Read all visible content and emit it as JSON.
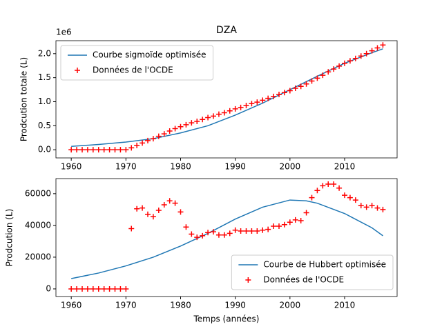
{
  "chart_data": [
    {
      "type": "line",
      "title": "DZA",
      "offset_label": "1e6",
      "y_label": "Prodcution totale (L)",
      "xlim": [
        1957.2,
        2019.6
      ],
      "xticks": [
        1960,
        1970,
        1980,
        1990,
        2000,
        2010
      ],
      "ylim": [
        -0.17,
        2.27
      ],
      "yticks": [
        {
          "value": 0,
          "label": "0.0"
        },
        {
          "value": 0.5,
          "label": "0.5"
        },
        {
          "value": 1,
          "label": "1.0"
        },
        {
          "value": 1.5,
          "label": "1.5"
        },
        {
          "value": 2,
          "label": "2.0"
        }
      ],
      "legend": "upper left",
      "series": [
        {
          "name": "Courbe sigmoïde optimisée",
          "type": "line",
          "color": "#1f77b4",
          "x": [
            1960,
            1965,
            1970,
            1975,
            1980,
            1985,
            1990,
            1995,
            2000,
            2005,
            2010,
            2015,
            2017
          ],
          "values": [
            0.07,
            0.11,
            0.16,
            0.23,
            0.35,
            0.5,
            0.72,
            0.97,
            1.25,
            1.53,
            1.8,
            2.02,
            2.1
          ]
        },
        {
          "name": "Données de l'OCDE",
          "type": "scatter",
          "color": "#ff0000",
          "x": [
            1960,
            1961,
            1962,
            1963,
            1964,
            1965,
            1966,
            1967,
            1968,
            1969,
            1970,
            1971,
            1972,
            1973,
            1974,
            1975,
            1976,
            1977,
            1978,
            1979,
            1980,
            1981,
            1982,
            1983,
            1984,
            1985,
            1986,
            1987,
            1988,
            1989,
            1990,
            1991,
            1992,
            1993,
            1994,
            1995,
            1996,
            1997,
            1998,
            1999,
            2000,
            2001,
            2002,
            2003,
            2004,
            2005,
            2006,
            2007,
            2008,
            2009,
            2010,
            2011,
            2012,
            2013,
            2014,
            2015,
            2016,
            2017
          ],
          "values": [
            0,
            0,
            0,
            0,
            0,
            0,
            0,
            0,
            0,
            0,
            0,
            0.04,
            0.09,
            0.14,
            0.19,
            0.23,
            0.28,
            0.33,
            0.39,
            0.44,
            0.48,
            0.52,
            0.56,
            0.59,
            0.63,
            0.67,
            0.7,
            0.74,
            0.77,
            0.81,
            0.85,
            0.88,
            0.92,
            0.96,
            0.99,
            1.03,
            1.07,
            1.11,
            1.15,
            1.19,
            1.23,
            1.28,
            1.32,
            1.37,
            1.43,
            1.49,
            1.55,
            1.62,
            1.68,
            1.74,
            1.8,
            1.85,
            1.9,
            1.95,
            2.0,
            2.06,
            2.12,
            2.18
          ]
        }
      ]
    },
    {
      "type": "line",
      "y_label": "Prodcution (L)",
      "x_label": "Temps (années)",
      "xlim": [
        1957.2,
        2019.6
      ],
      "xticks": [
        1960,
        1970,
        1980,
        1990,
        2000,
        2010
      ],
      "ylim": [
        -4800,
        69500
      ],
      "yticks": [
        0,
        20000,
        40000,
        60000
      ],
      "legend": "lower right",
      "series": [
        {
          "name": "Courbe de Hubbert optimisée",
          "type": "line",
          "color": "#1f77b4",
          "x": [
            1960,
            1965,
            1970,
            1975,
            1980,
            1985,
            1990,
            1995,
            2000,
            2003,
            2005,
            2010,
            2015,
            2017
          ],
          "values": [
            6500,
            10000,
            14500,
            20000,
            27000,
            35000,
            44000,
            51500,
            56000,
            55500,
            54000,
            47500,
            38500,
            33500
          ]
        },
        {
          "name": "Données de l'OCDE",
          "type": "scatter",
          "color": "#ff0000",
          "x": [
            1960,
            1961,
            1962,
            1963,
            1964,
            1965,
            1966,
            1967,
            1968,
            1969,
            1970,
            1971,
            1972,
            1973,
            1974,
            1975,
            1976,
            1977,
            1978,
            1979,
            1980,
            1981,
            1982,
            1983,
            1984,
            1985,
            1986,
            1987,
            1988,
            1989,
            1990,
            1991,
            1992,
            1993,
            1994,
            1995,
            1996,
            1997,
            1998,
            1999,
            2000,
            2001,
            2002,
            2003,
            2004,
            2005,
            2006,
            2007,
            2008,
            2009,
            2010,
            2011,
            2012,
            2013,
            2014,
            2015,
            2016,
            2017
          ],
          "values": [
            0,
            0,
            0,
            0,
            0,
            0,
            0,
            0,
            0,
            0,
            0,
            38000,
            50500,
            51000,
            47000,
            45500,
            49500,
            53000,
            55500,
            54000,
            48500,
            39000,
            34500,
            32500,
            33500,
            35500,
            36000,
            34000,
            34000,
            35000,
            37000,
            36500,
            36500,
            36500,
            36500,
            37000,
            37500,
            39500,
            39500,
            40500,
            42000,
            43500,
            43000,
            48000,
            57500,
            62000,
            65000,
            66000,
            66000,
            63500,
            59000,
            57500,
            56000,
            52500,
            51500,
            52500,
            51000,
            50000
          ]
        }
      ]
    }
  ]
}
